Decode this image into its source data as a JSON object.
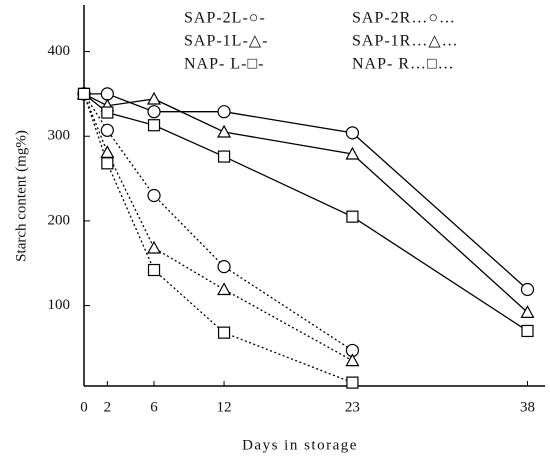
{
  "chart_data": {
    "type": "line",
    "x_label": "Days in storage",
    "y_label": "Starch content (mg%)",
    "xlim": [
      0,
      39.5
    ],
    "xticks": [
      0,
      2,
      6,
      12,
      23,
      38
    ],
    "ylim": [
      5,
      455
    ],
    "yticks": [
      100,
      200,
      300,
      400
    ],
    "x": [
      0,
      2,
      6,
      12,
      23,
      38
    ],
    "series": [
      {
        "name": "SAP-2L-○-",
        "color": "#000",
        "marker": "circle",
        "line_style": "solid",
        "values": [
          350,
          350,
          329,
          329,
          304,
          119
        ]
      },
      {
        "name": "SAP-1L-△-",
        "color": "#000",
        "marker": "triangle",
        "line_style": "solid",
        "values": [
          350,
          336,
          344,
          305,
          279,
          92
        ]
      },
      {
        "name": "NAP- L-□-",
        "color": "#000",
        "marker": "square",
        "line_style": "solid",
        "values": [
          350,
          328,
          313,
          276,
          205,
          70
        ]
      },
      {
        "name": "SAP-2R…○…",
        "color": "#000",
        "marker": "circle",
        "line_style": "dotted",
        "values": [
          350,
          307,
          230,
          146,
          47,
          null
        ]
      },
      {
        "name": "SAP-1R…△…",
        "color": "#000",
        "marker": "triangle",
        "line_style": "dotted",
        "values": [
          350,
          281,
          168,
          119,
          35,
          null
        ]
      },
      {
        "name": "NAP- R…□…",
        "color": "#000",
        "marker": "square",
        "line_style": "dotted",
        "values": [
          350,
          268,
          142,
          68,
          9,
          null
        ]
      }
    ]
  }
}
